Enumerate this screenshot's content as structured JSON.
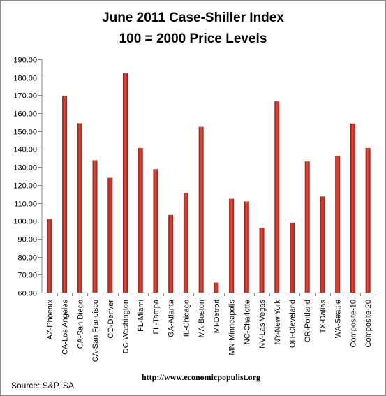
{
  "chart_data": {
    "type": "bar",
    "title_line1": "June 2011 Case-Shiller Index",
    "title_line2": "100 = 2000 Price Levels",
    "categories": [
      "AZ-Phoenix",
      "CA-Los Angeles",
      "CA-San Diego",
      "CA-San Francisco",
      "CO-Denver",
      "DC-Washington",
      "FL-Miami",
      "FL-Tampa",
      "GA-Atlanta",
      "IL-Chicago",
      "MA-Boston",
      "MI-Detroit",
      "MN-Minneapolis",
      "NC-Charlotte",
      "NV-Las Vegas",
      "NY-New York",
      "OH-Cleveland",
      "OR-Portland",
      "TX-Dallas",
      "WA-Seattle",
      "Composite-10",
      "Composite-20"
    ],
    "values": [
      101.0,
      169.7,
      154.4,
      133.8,
      124.0,
      182.2,
      140.6,
      128.8,
      103.3,
      115.5,
      152.4,
      65.6,
      112.3,
      110.8,
      96.2,
      166.6,
      99.0,
      133.1,
      113.6,
      136.3,
      154.3,
      140.6
    ],
    "ylim": [
      60,
      190
    ],
    "yticks": [
      "60.00",
      "70.00",
      "80.00",
      "90.00",
      "100.00",
      "110.00",
      "120.00",
      "130.00",
      "140.00",
      "150.00",
      "160.00",
      "170.00",
      "180.00",
      "190.00"
    ],
    "xlabel": "",
    "ylabel": "",
    "grid": false,
    "bar_color": "#c0392b"
  },
  "footer": {
    "url": "http://www.economicpopulist.org",
    "source": "Source: S&P, SA"
  }
}
